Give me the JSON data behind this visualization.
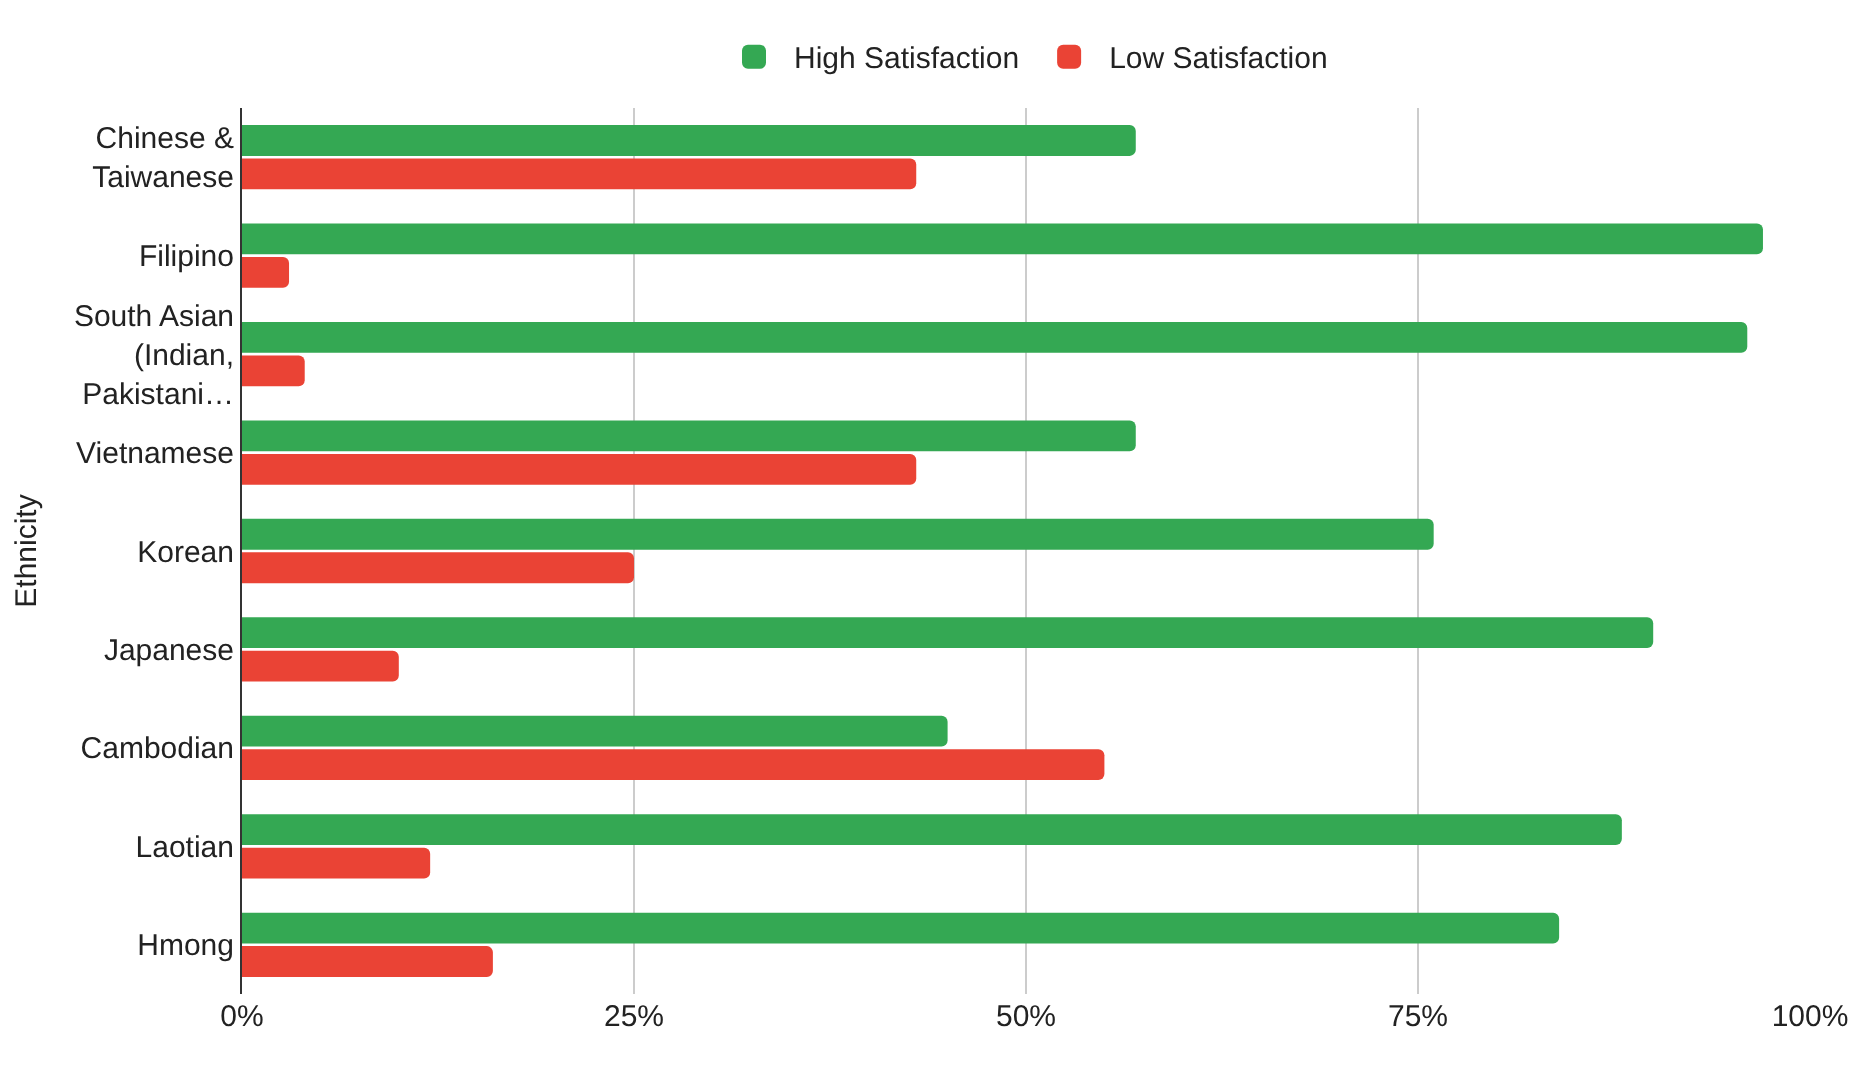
{
  "chart_data": {
    "type": "bar",
    "orientation": "horizontal",
    "ylabel": "Ethnicity",
    "categories": [
      "Chinese & Taiwanese",
      "Filipino",
      "South Asian (Indian, Pakistani…",
      "Vietnamese",
      "Korean",
      "Japanese",
      "Cambodian",
      "Laotian",
      "Hmong"
    ],
    "series": [
      {
        "name": "High Satisfaction",
        "color": "#34a853",
        "values": [
          57,
          97,
          96,
          57,
          76,
          90,
          45,
          88,
          84
        ]
      },
      {
        "name": "Low Satisfaction",
        "color": "#ea4335",
        "values": [
          43,
          3,
          4,
          43,
          25,
          10,
          55,
          12,
          16
        ]
      }
    ],
    "xlim": [
      0,
      100
    ],
    "xticks": [
      {
        "value": 0,
        "label": "0%"
      },
      {
        "value": 25,
        "label": "25%"
      },
      {
        "value": 50,
        "label": "50%"
      },
      {
        "value": 75,
        "label": "75%"
      },
      {
        "value": 100,
        "label": "100%"
      }
    ],
    "grid": "x",
    "legend": "top"
  }
}
